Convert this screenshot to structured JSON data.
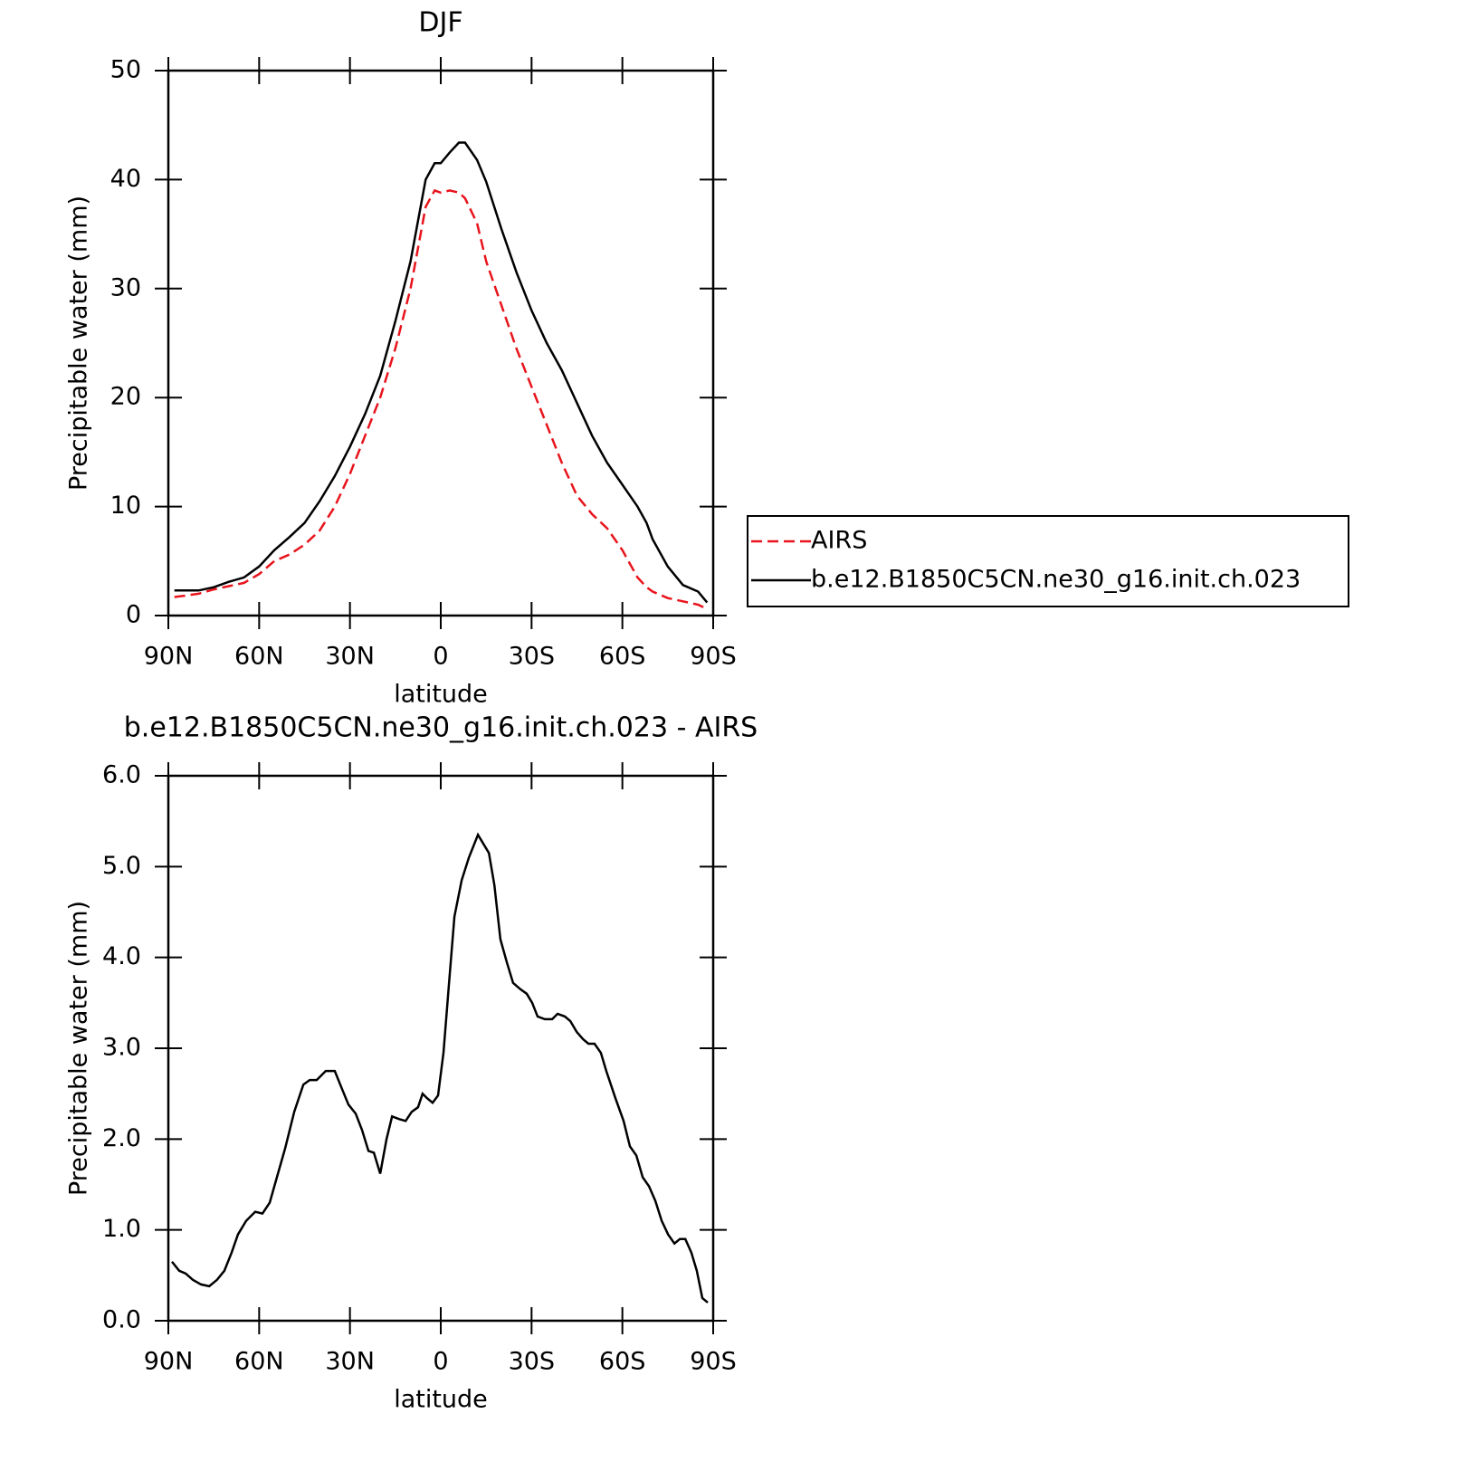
{
  "chart_data": [
    {
      "type": "line",
      "title": "DJF",
      "ylabel": "Precipitable water (mm)",
      "xlabel": "latitude",
      "xlim": [
        90,
        -90
      ],
      "xticks": [
        {
          "value": 90,
          "label": "90N"
        },
        {
          "value": 60,
          "label": "60N"
        },
        {
          "value": 30,
          "label": "30N"
        },
        0,
        {
          "value": -30,
          "label": "30S"
        },
        {
          "value": -60,
          "label": "60S"
        },
        {
          "value": -90,
          "label": "90S"
        }
      ],
      "ylim": [
        0,
        50
      ],
      "yticks": [
        0,
        10,
        20,
        30,
        40,
        50
      ],
      "legend": "outside right",
      "x": [
        88,
        85,
        80,
        75,
        70,
        65,
        60,
        55,
        50,
        45,
        40,
        35,
        30,
        25,
        20,
        15,
        10,
        5,
        2,
        0,
        -3,
        -6,
        -8,
        -12,
        -15,
        -20,
        -25,
        -30,
        -35,
        -40,
        -45,
        -50,
        -55,
        -60,
        -65,
        -68,
        -70,
        -75,
        -80,
        -85,
        -88
      ],
      "series": [
        {
          "name": "AIRS",
          "color": "#e8141c",
          "linestyle": "dashed",
          "values": [
            1.7,
            1.8,
            2.0,
            2.4,
            2.7,
            3.0,
            3.8,
            5.0,
            5.6,
            6.5,
            7.8,
            10,
            13,
            16.5,
            20,
            24.5,
            30,
            37.5,
            39,
            38.8,
            39,
            38.8,
            38.3,
            36,
            32.5,
            28.5,
            24.5,
            21,
            17.5,
            14,
            11,
            9.3,
            8,
            6,
            3.5,
            2.6,
            2.2,
            1.6,
            1.3,
            1.0,
            0.6
          ]
        },
        {
          "name": "b.e12.B1850C5CN.ne30_g16.init.ch.023",
          "color": "#000000",
          "linestyle": "solid",
          "values": [
            2.3,
            2.3,
            2.3,
            2.6,
            3.1,
            3.5,
            4.5,
            6.0,
            7.2,
            8.5,
            10.5,
            12.8,
            15.5,
            18.5,
            22,
            27,
            32.5,
            40,
            41.5,
            41.5,
            42.5,
            43.4,
            43.4,
            41.8,
            39.8,
            35.5,
            31.5,
            28,
            25,
            22.5,
            19.5,
            16.5,
            14,
            12,
            10,
            8.5,
            7,
            4.5,
            2.8,
            2.2,
            1.2
          ]
        }
      ]
    },
    {
      "type": "line",
      "title": "b.e12.B1850C5CN.ne30_g16.init.ch.023 - AIRS",
      "ylabel": "Precipitable water (mm)",
      "xlabel": "latitude",
      "xlim": [
        90,
        -90
      ],
      "xticks": [
        {
          "value": 90,
          "label": "90N"
        },
        {
          "value": 60,
          "label": "60N"
        },
        {
          "value": 30,
          "label": "30N"
        },
        0,
        {
          "value": -30,
          "label": "30S"
        },
        {
          "value": -60,
          "label": "60S"
        },
        {
          "value": -90,
          "label": "90S"
        }
      ],
      "ylim": [
        0,
        6
      ],
      "yticks": [
        {
          "value": 0,
          "label": "0.0"
        },
        {
          "value": 1,
          "label": "1.0"
        },
        {
          "value": 2,
          "label": "2.0"
        },
        {
          "value": 3,
          "label": "3.0"
        },
        {
          "value": 4,
          "label": "4.0"
        },
        {
          "value": 5,
          "label": "5.0"
        },
        {
          "value": 6,
          "label": "6.0"
        }
      ],
      "x": [
        88.8,
        86.4,
        84.3,
        81.9,
        79.2,
        76.5,
        73.9,
        71.5,
        69.1,
        67,
        64.3,
        61.3,
        58.9,
        56.5,
        54.4,
        51.4,
        48.4,
        45.4,
        43.3,
        41,
        38,
        35,
        32.6,
        30.5,
        28.1,
        26,
        23.9,
        22.1,
        20,
        17.9,
        16.1,
        13.7,
        11.6,
        9.6,
        7.5,
        6,
        4.5,
        2.7,
        0.9,
        -0.9,
        -2.7,
        -4.5,
        -6.9,
        -9.3,
        -12.3,
        -14.1,
        -15.9,
        -17.7,
        -19.7,
        -21.8,
        -23.9,
        -26.3,
        -28.4,
        -30.2,
        -32,
        -34.4,
        -36.8,
        -38.6,
        -41,
        -42.8,
        -44.9,
        -47,
        -48.8,
        -50.8,
        -52.9,
        -54.7,
        -57.7,
        -60.4,
        -62.5,
        -64.6,
        -66.7,
        -68.8,
        -70.9,
        -73,
        -75.1,
        -77.2,
        -79,
        -80.8,
        -82.8,
        -84.6,
        -86.4,
        -88.2
      ],
      "series": [
        {
          "name": "b.e12.B1850C5CN.ne30_g16.init.ch.023 - AIRS",
          "color": "#000000",
          "linestyle": "solid",
          "values": [
            0.65,
            0.55,
            0.52,
            0.45,
            0.4,
            0.38,
            0.45,
            0.55,
            0.75,
            0.95,
            1.1,
            1.2,
            1.18,
            1.3,
            1.55,
            1.9,
            2.3,
            2.6,
            2.65,
            2.65,
            2.75,
            2.75,
            2.55,
            2.38,
            2.28,
            2.1,
            1.87,
            1.85,
            1.62,
            2.0,
            2.25,
            2.22,
            2.2,
            2.3,
            2.35,
            2.5,
            2.45,
            2.4,
            2.48,
            2.95,
            3.7,
            4.45,
            4.85,
            5.1,
            5.35,
            5.25,
            5.15,
            4.8,
            4.2,
            3.95,
            3.72,
            3.65,
            3.6,
            3.5,
            3.35,
            3.32,
            3.32,
            3.38,
            3.35,
            3.3,
            3.18,
            3.1,
            3.05,
            3.05,
            2.95,
            2.75,
            2.45,
            2.2,
            1.92,
            1.82,
            1.58,
            1.48,
            1.32,
            1.1,
            0.95,
            0.85,
            0.9,
            0.9,
            0.75,
            0.55,
            0.25,
            0.2
          ]
        }
      ]
    }
  ]
}
